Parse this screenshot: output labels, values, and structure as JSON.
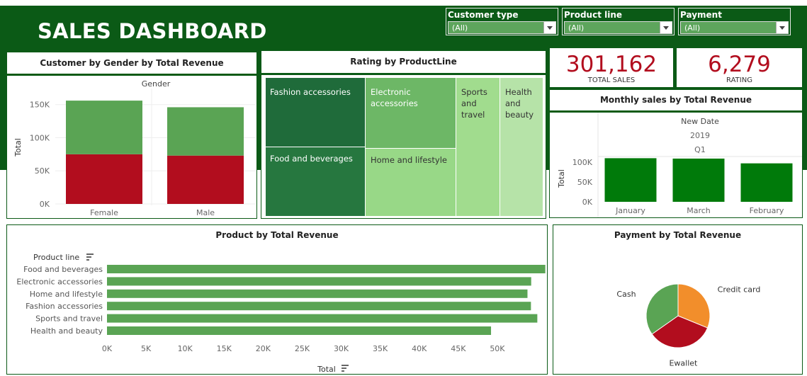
{
  "dashboard": {
    "title": "SALES DASHBOARD"
  },
  "filters": [
    {
      "label": "Customer type",
      "value": "(All)"
    },
    {
      "label": "Product line",
      "value": "(All)"
    },
    {
      "label": "Payment",
      "value": "(All)"
    }
  ],
  "kpis": [
    {
      "value": "301,162",
      "label": "TOTAL SALES"
    },
    {
      "value": "6,279",
      "label": "RATING"
    }
  ],
  "panels": {
    "gender": "Customer by Gender by Total Revenue",
    "rating": "Rating by ProductLine",
    "monthly": "Monthly sales by Total Revenue",
    "product": "Product by Total Revenue",
    "payment": "Payment by Total Revenue"
  },
  "colors": {
    "banner": "#0b5a16",
    "dark_green": "#007a0a",
    "mid_green": "#5aa454",
    "red": "#b20d1e",
    "orange": "#f28e2b",
    "kpi_red": "#b20d1e"
  },
  "chart_data": [
    {
      "id": "gender",
      "type": "bar",
      "title": "Customer by Gender by Total Revenue",
      "header": "Gender",
      "ylabel": "Total",
      "yticks": [
        "0K",
        "50K",
        "100K",
        "150K"
      ],
      "ylim": [
        0,
        170000
      ],
      "categories": [
        "Female",
        "Male"
      ],
      "stacked": true,
      "series": [
        {
          "color": "#b20d1e",
          "values": [
            75000,
            73000
          ]
        },
        {
          "color": "#5aa454",
          "values": [
            81000,
            73000
          ]
        }
      ]
    },
    {
      "id": "rating",
      "type": "heatmap",
      "title": "Rating by ProductLine",
      "cells": [
        {
          "label": "Fashion accessories",
          "color": "#1f6b3a"
        },
        {
          "label": "Food and beverages",
          "color": "#26773f"
        },
        {
          "label": "Electronic accessories",
          "color": "#6db766"
        },
        {
          "label": "Home and lifestyle",
          "color": "#98d887"
        },
        {
          "label": "Sports and travel",
          "color": "#a1dc8e"
        },
        {
          "label": "Health and beauty",
          "color": "#b6e3a8"
        }
      ]
    },
    {
      "id": "monthly",
      "type": "bar",
      "title": "Monthly sales by Total Revenue",
      "header": [
        "New Date",
        "2019",
        "Q1"
      ],
      "ylabel": "Total",
      "yticks": [
        "0K",
        "50K",
        "100K"
      ],
      "ylim": [
        0,
        125000
      ],
      "categories": [
        "January",
        "March",
        "February"
      ],
      "values": [
        110000,
        109000,
        97000
      ],
      "color": "#007a0a"
    },
    {
      "id": "product",
      "type": "bar",
      "orientation": "horizontal",
      "title": "Product by Total Revenue",
      "ylabel": "Product line",
      "xlabel": "Total",
      "xticks": [
        "0K",
        "5K",
        "10K",
        "15K",
        "20K",
        "25K",
        "30K",
        "35K",
        "40K",
        "45K",
        "50K"
      ],
      "xlim": [
        0,
        54000
      ],
      "categories": [
        "Food and beverages",
        "Electronic accessories",
        "Home and lifestyle",
        "Fashion accessories",
        "Sports and travel",
        "Health and beauty"
      ],
      "values": [
        56145,
        54338,
        53862,
        54306,
        55123,
        49194
      ],
      "color": "#5aa454"
    },
    {
      "id": "payment",
      "type": "pie",
      "title": "Payment by Total Revenue",
      "categories": [
        "Credit card",
        "Ewallet",
        "Cash"
      ],
      "values": [
        100767,
        109993,
        112207
      ],
      "colors": [
        "#f28e2b",
        "#b20d1e",
        "#5aa454"
      ]
    }
  ]
}
